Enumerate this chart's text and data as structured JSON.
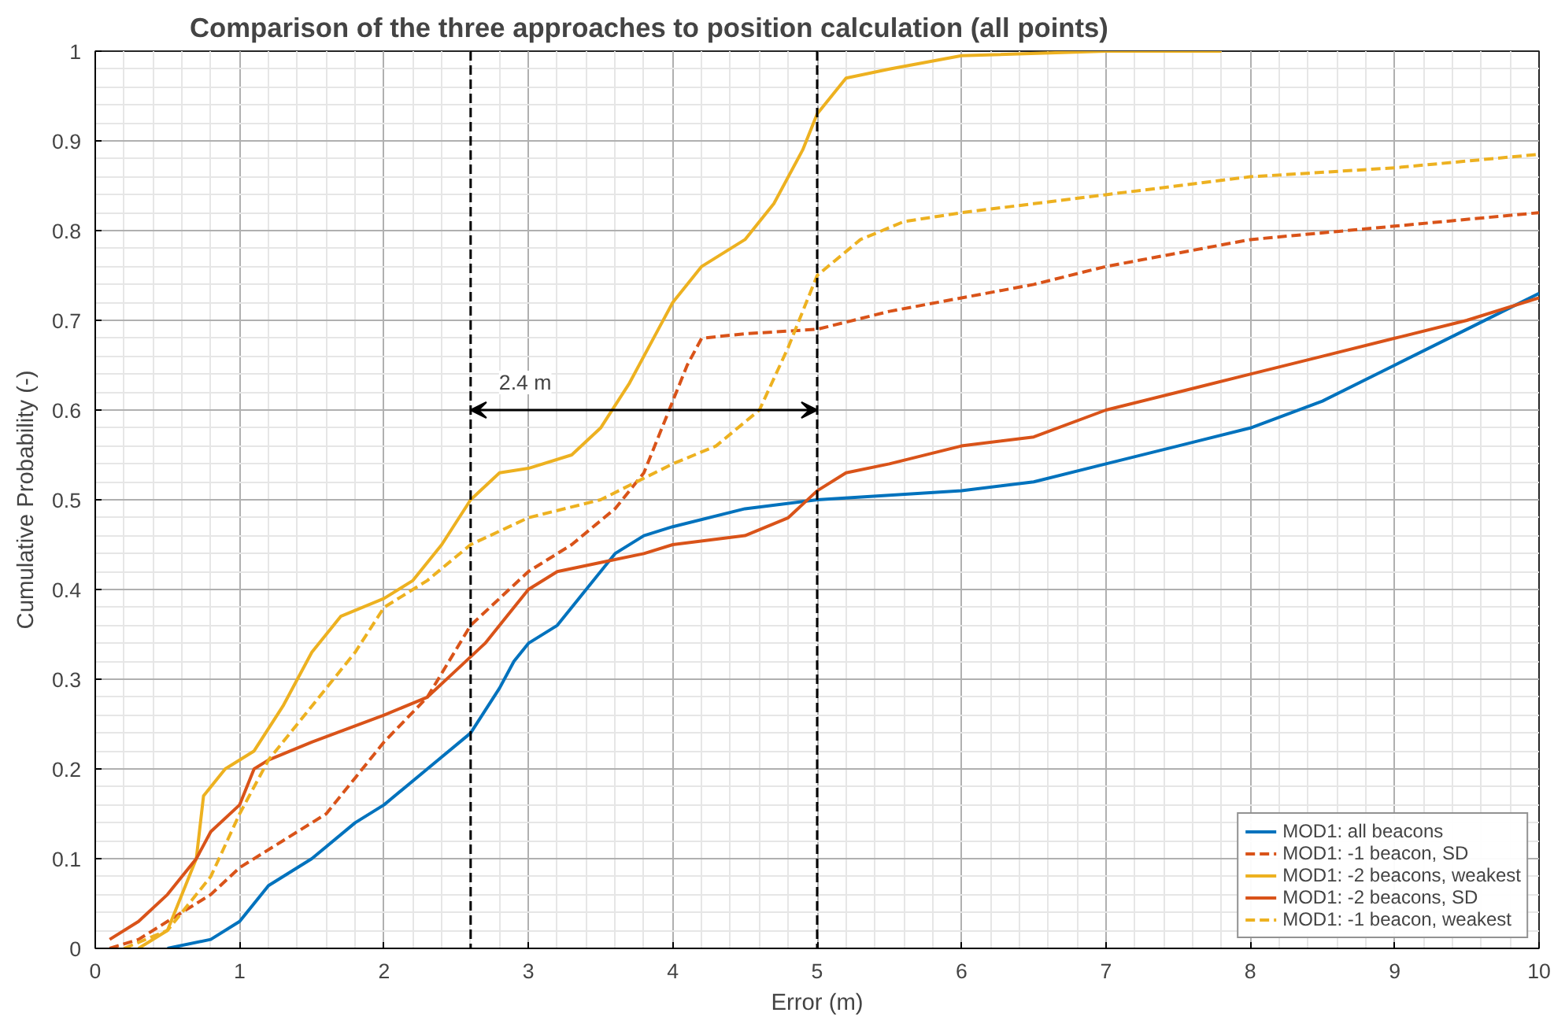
{
  "chart_data": {
    "type": "line",
    "title": "Comparison of the three approaches to position calculation (all points)",
    "xlabel": "Error (m)",
    "ylabel": "Cumulative Probability (-)",
    "xlim": [
      0,
      10
    ],
    "ylim": [
      0,
      1
    ],
    "xticks": [
      0,
      1,
      2,
      3,
      4,
      5,
      6,
      7,
      8,
      9,
      10
    ],
    "yticks": [
      0,
      0.1,
      0.2,
      0.3,
      0.4,
      0.5,
      0.6,
      0.7,
      0.8,
      0.9,
      1
    ],
    "grid": true,
    "legend": "bottom right",
    "marker": "none",
    "series": [
      {
        "name": "MOD1: all beacons",
        "color": "#0072bd",
        "line_style": "solid",
        "x": [
          0.5,
          0.8,
          1.0,
          1.2,
          1.5,
          1.8,
          2.0,
          2.3,
          2.6,
          2.8,
          2.9,
          3.0,
          3.2,
          3.4,
          3.6,
          3.8,
          4.0,
          4.5,
          5.0,
          6.0,
          6.5,
          7.0,
          7.5,
          8.0,
          8.5,
          9.0,
          9.5,
          10.0
        ],
        "values": [
          0,
          0.01,
          0.03,
          0.07,
          0.1,
          0.14,
          0.16,
          0.2,
          0.24,
          0.29,
          0.32,
          0.34,
          0.36,
          0.4,
          0.44,
          0.46,
          0.47,
          0.49,
          0.5,
          0.51,
          0.52,
          0.54,
          0.56,
          0.58,
          0.61,
          0.65,
          0.69,
          0.73
        ]
      },
      {
        "name": "MOD1: -1 beacon, SD",
        "color": "#d95319",
        "line_style": "dashed",
        "x": [
          0.1,
          0.3,
          0.5,
          0.8,
          1.0,
          1.3,
          1.6,
          1.8,
          2.0,
          2.3,
          2.6,
          2.8,
          3.0,
          3.3,
          3.6,
          3.8,
          3.95,
          4.1,
          4.2,
          4.5,
          5.0,
          5.5,
          6.0,
          6.5,
          7.0,
          7.5,
          8.0,
          9.0,
          10.0
        ],
        "values": [
          0,
          0.01,
          0.03,
          0.06,
          0.09,
          0.12,
          0.15,
          0.19,
          0.23,
          0.28,
          0.36,
          0.39,
          0.42,
          0.45,
          0.49,
          0.53,
          0.59,
          0.65,
          0.68,
          0.685,
          0.69,
          0.71,
          0.725,
          0.74,
          0.76,
          0.775,
          0.79,
          0.805,
          0.82
        ]
      },
      {
        "name": "MOD1: -2 beacons, weakest",
        "color": "#edb120",
        "line_style": "solid",
        "x": [
          0.3,
          0.5,
          0.7,
          0.75,
          0.9,
          1.1,
          1.3,
          1.5,
          1.7,
          2.0,
          2.2,
          2.4,
          2.6,
          2.8,
          3.0,
          3.3,
          3.5,
          3.7,
          3.9,
          4.0,
          4.2,
          4.5,
          4.7,
          4.9,
          5.0,
          5.2,
          5.5,
          6.0,
          7.0,
          7.8
        ],
        "values": [
          0,
          0.02,
          0.1,
          0.17,
          0.2,
          0.22,
          0.27,
          0.33,
          0.37,
          0.39,
          0.41,
          0.45,
          0.5,
          0.53,
          0.535,
          0.55,
          0.58,
          0.63,
          0.69,
          0.72,
          0.76,
          0.79,
          0.83,
          0.89,
          0.93,
          0.97,
          0.98,
          0.995,
          1,
          1
        ]
      },
      {
        "name": "MOD1: -2 beacons, SD",
        "color": "#d95319",
        "line_style": "solid",
        "x": [
          0.1,
          0.3,
          0.5,
          0.7,
          0.8,
          1.0,
          1.1,
          1.2,
          1.5,
          2.0,
          2.3,
          2.5,
          2.7,
          2.9,
          3.0,
          3.2,
          3.5,
          3.8,
          4.0,
          4.5,
          4.8,
          5.0,
          5.2,
          5.5,
          6.0,
          6.5,
          7.0,
          7.5,
          8.0,
          8.5,
          9.0,
          9.5,
          10.0
        ],
        "values": [
          0.01,
          0.03,
          0.06,
          0.1,
          0.13,
          0.16,
          0.2,
          0.21,
          0.23,
          0.26,
          0.28,
          0.31,
          0.34,
          0.38,
          0.4,
          0.42,
          0.43,
          0.44,
          0.45,
          0.46,
          0.48,
          0.51,
          0.53,
          0.54,
          0.56,
          0.57,
          0.6,
          0.62,
          0.64,
          0.66,
          0.68,
          0.7,
          0.725
        ]
      },
      {
        "name": "MOD1: -1 beacon, weakest",
        "color": "#edb120",
        "line_style": "dashed",
        "x": [
          0.2,
          0.5,
          0.8,
          1.0,
          1.2,
          1.5,
          1.8,
          2.0,
          2.3,
          2.6,
          3.0,
          3.5,
          4.0,
          4.3,
          4.6,
          4.8,
          5.0,
          5.3,
          5.6,
          6.0,
          6.5,
          7.0,
          8.0,
          9.0,
          10.0
        ],
        "values": [
          0,
          0.02,
          0.08,
          0.15,
          0.21,
          0.27,
          0.33,
          0.38,
          0.41,
          0.45,
          0.48,
          0.5,
          0.54,
          0.56,
          0.6,
          0.67,
          0.75,
          0.79,
          0.81,
          0.82,
          0.83,
          0.84,
          0.86,
          0.87,
          0.885
        ]
      }
    ],
    "ref_lines": [
      {
        "axis": "x",
        "value": 2.6,
        "color": "#000000",
        "line_style": "dashed"
      },
      {
        "axis": "x",
        "value": 5.0,
        "color": "#000000",
        "line_style": "dashed"
      }
    ],
    "annotations": [
      {
        "text": "2.4 m",
        "x": 2.6,
        "y": 0.6
      }
    ]
  }
}
